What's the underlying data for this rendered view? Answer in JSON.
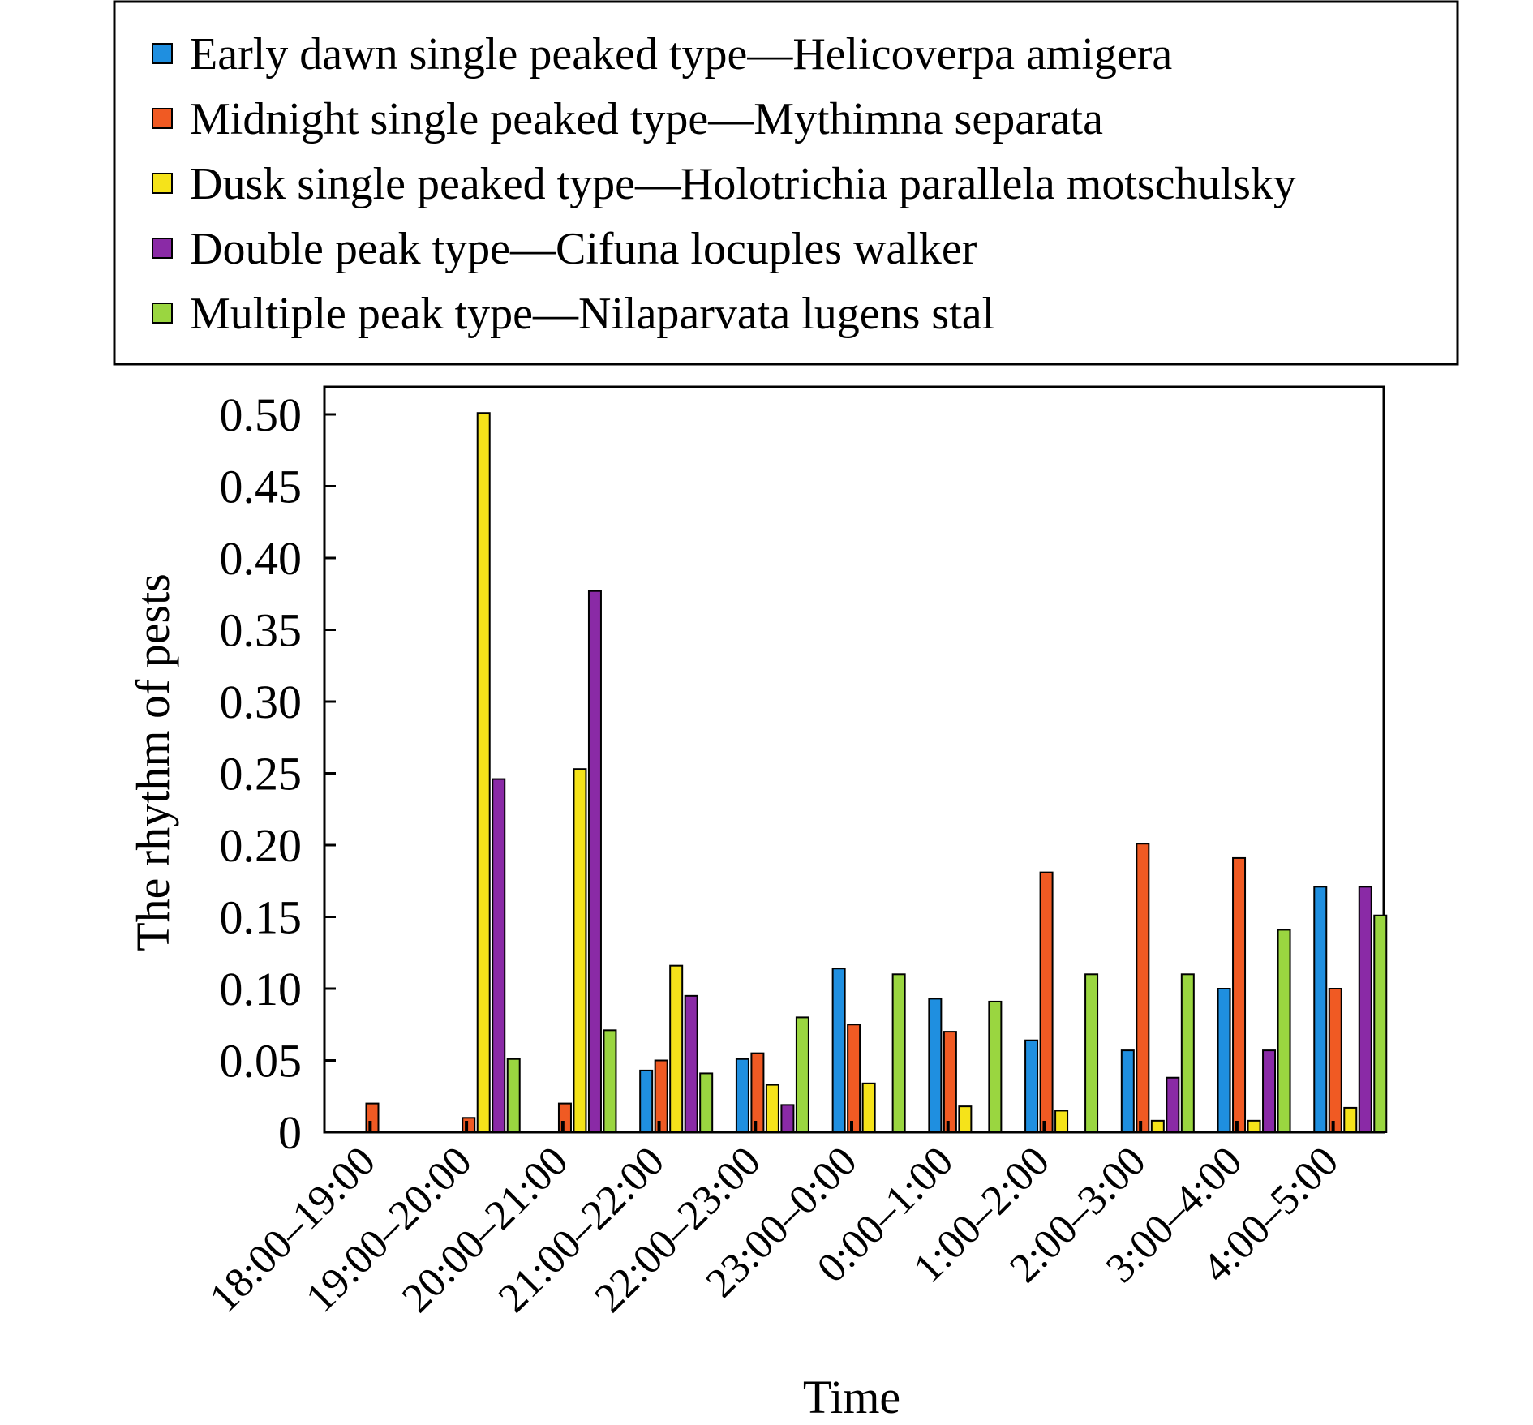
{
  "chart_data": {
    "type": "bar",
    "title": "",
    "xlabel": "Time",
    "ylabel": "The rhythm of pests",
    "ylim": [
      0,
      0.52
    ],
    "yticks": [
      "0",
      "0.05",
      "0.10",
      "0.15",
      "0.20",
      "0.25",
      "0.30",
      "0.35",
      "0.40",
      "0.45",
      "0.50"
    ],
    "ytick_values": [
      0,
      0.05,
      0.1,
      0.15,
      0.2,
      0.25,
      0.3,
      0.35,
      0.4,
      0.45,
      0.5
    ],
    "grid": false,
    "legend_position": "top",
    "categories": [
      "18:00–19:00",
      "19:00–20:00",
      "20:00–21:00",
      "21:00–22:00",
      "22:00–23:00",
      "23:00–0:00",
      "0:00–1:00",
      "1:00–2:00",
      "2:00–3:00",
      "3:00–4:00",
      "4:00–5:00"
    ],
    "series": [
      {
        "name": "Early dawn single peaked type—Helicoverpa amigera",
        "color": "#1f8fe0",
        "values": [
          0,
          0,
          0,
          0.043,
          0.051,
          0.114,
          0.093,
          0.064,
          0.057,
          0.1,
          0.171
        ]
      },
      {
        "name": "Midnight single peaked type—Mythimna separata",
        "color": "#f05a23",
        "values": [
          0.02,
          0.01,
          0.02,
          0.05,
          0.055,
          0.075,
          0.07,
          0.181,
          0.201,
          0.191,
          0.1
        ]
      },
      {
        "name": "Dusk single peaked type—Holotrichia parallela motschulsky",
        "color": "#f5e31a",
        "values": [
          0,
          0.501,
          0.253,
          0.116,
          0.033,
          0.034,
          0.018,
          0.015,
          0.008,
          0.008,
          0.017
        ]
      },
      {
        "name": "Double peak type—Cifuna locuples walker",
        "color": "#8a2aa6",
        "values": [
          0,
          0.246,
          0.377,
          0.095,
          0.019,
          0,
          0,
          0,
          0.038,
          0.057,
          0.171
        ]
      },
      {
        "name": "Multiple peak type—Nilaparvata lugens stal",
        "color": "#9ad640",
        "values": [
          0,
          0.051,
          0.071,
          0.041,
          0.08,
          0.11,
          0.091,
          0.11,
          0.11,
          0.141,
          0.151
        ]
      }
    ]
  }
}
